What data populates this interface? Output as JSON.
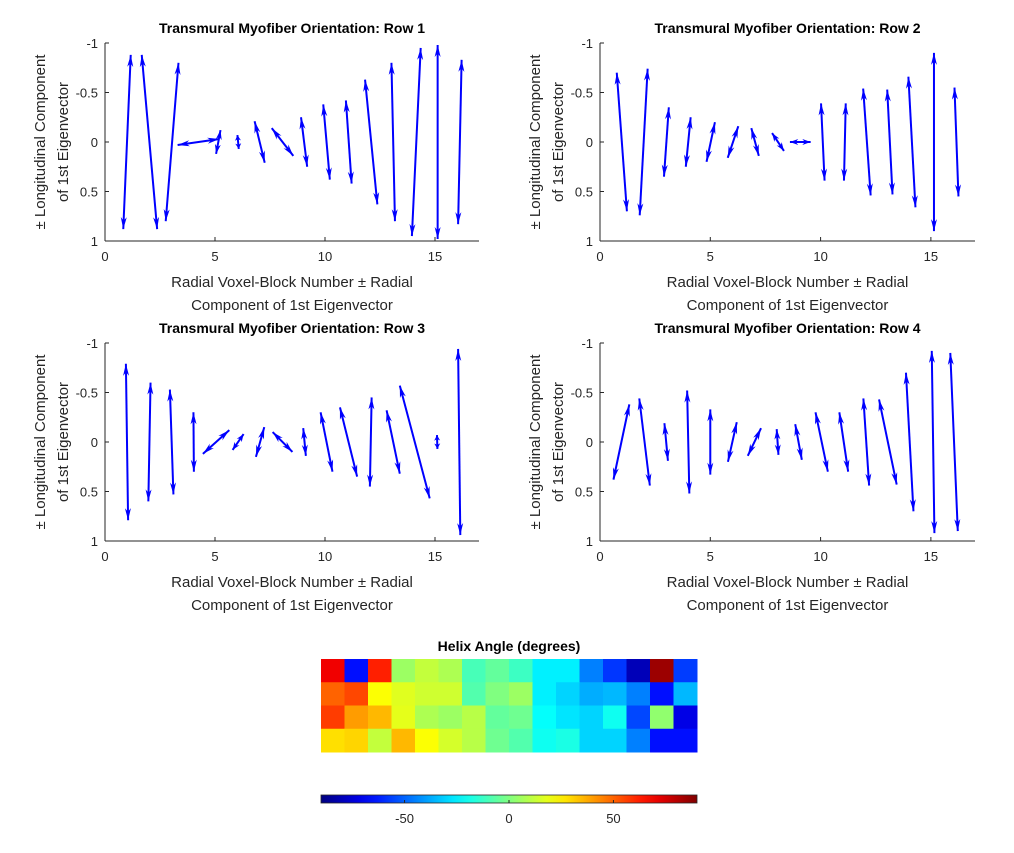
{
  "chart_data": [
    {
      "type": "quiver",
      "title": "Transmural Myofiber Orientation: Row 1",
      "xlabel": [
        "Radial Voxel-Block Number ± Radial",
        "Component of 1st Eigenvector"
      ],
      "ylabel": [
        "± Longitudinal Component",
        "of 1st Eigenvector"
      ],
      "xlim": [
        0,
        17
      ],
      "ylim": [
        -1,
        1
      ],
      "y_reversed": true,
      "xticks": [
        "0",
        "5",
        "10",
        "15"
      ],
      "yticks": [
        "-1",
        "-0.5",
        "0",
        "0.5",
        "1"
      ],
      "arrows_fields": [
        "x",
        "u",
        "v"
      ],
      "arrows": [
        [
          1,
          0.17,
          0.88
        ],
        [
          2.02,
          0.35,
          -0.88
        ],
        [
          3.05,
          0.29,
          0.8
        ],
        [
          4.25,
          0.95,
          0.03
        ],
        [
          5.15,
          0.1,
          0.12
        ],
        [
          6.05,
          0.03,
          -0.07
        ],
        [
          7.03,
          0.23,
          -0.21
        ],
        [
          8.07,
          0.49,
          -0.14
        ],
        [
          9.05,
          0.14,
          -0.25
        ],
        [
          10.07,
          0.15,
          -0.38
        ],
        [
          11.08,
          0.13,
          -0.42
        ],
        [
          12.1,
          0.28,
          -0.63
        ],
        [
          13.1,
          0.08,
          -0.8
        ],
        [
          14.15,
          0.2,
          0.95
        ],
        [
          15.12,
          0,
          0.98
        ],
        [
          16.13,
          0.08,
          0.83
        ]
      ]
    },
    {
      "type": "quiver",
      "title": "Transmural Myofiber Orientation: Row 2",
      "xlabel": [
        "Radial Voxel-Block Number ± Radial",
        "Component of 1st Eigenvector"
      ],
      "ylabel": [
        "± Longitudinal Component",
        "of 1st Eigenvector"
      ],
      "xlim": [
        0,
        17
      ],
      "ylim": [
        -1,
        1
      ],
      "y_reversed": true,
      "xticks": [
        "0",
        "5",
        "10",
        "15"
      ],
      "yticks": [
        "-1",
        "-0.5",
        "0",
        "0.5",
        "1"
      ],
      "arrows_fields": [
        "x",
        "u",
        "v"
      ],
      "arrows": [
        [
          0.99,
          0.23,
          -0.7
        ],
        [
          1.98,
          0.18,
          0.74
        ],
        [
          3.01,
          0.11,
          0.35
        ],
        [
          4.0,
          0.11,
          0.25
        ],
        [
          5.02,
          0.19,
          0.2
        ],
        [
          6.03,
          0.24,
          0.16
        ],
        [
          7.03,
          0.17,
          -0.14
        ],
        [
          8.07,
          0.27,
          -0.09
        ],
        [
          9.08,
          0.47,
          0
        ],
        [
          10.1,
          0.08,
          -0.39
        ],
        [
          11.1,
          0.04,
          0.39
        ],
        [
          12.1,
          0.17,
          -0.54
        ],
        [
          13.14,
          0.12,
          -0.53
        ],
        [
          14.14,
          0.16,
          -0.66
        ],
        [
          15.14,
          0,
          -0.9
        ],
        [
          16.16,
          0.09,
          -0.55
        ]
      ]
    },
    {
      "type": "quiver",
      "title": "Transmural Myofiber Orientation: Row 3",
      "xlabel": [
        "Radial Voxel-Block Number ± Radial",
        "Component of 1st Eigenvector"
      ],
      "ylabel": [
        "± Longitudinal Component",
        "of 1st Eigenvector"
      ],
      "xlim": [
        0,
        17
      ],
      "ylim": [
        -1,
        1
      ],
      "y_reversed": true,
      "xticks": [
        "0",
        "5",
        "10",
        "15"
      ],
      "yticks": [
        "-1",
        "-0.5",
        "0",
        "0.5",
        "1"
      ],
      "arrows_fields": [
        "x",
        "u",
        "v"
      ],
      "arrows": [
        [
          1.0,
          0.05,
          -0.79
        ],
        [
          2.02,
          0.05,
          0.6
        ],
        [
          3.03,
          0.08,
          -0.53
        ],
        [
          4.03,
          0.01,
          -0.3
        ],
        [
          5.05,
          0.6,
          0.12
        ],
        [
          6.05,
          0.25,
          0.08
        ],
        [
          7.05,
          0.19,
          0.15
        ],
        [
          8.07,
          0.45,
          -0.1
        ],
        [
          9.07,
          0.06,
          -0.14
        ],
        [
          10.07,
          0.27,
          -0.3
        ],
        [
          11.07,
          0.39,
          -0.35
        ],
        [
          12.08,
          0.04,
          0.45
        ],
        [
          13.1,
          0.3,
          -0.32
        ],
        [
          14.08,
          0.68,
          -0.57
        ],
        [
          15.1,
          0.01,
          -0.07
        ],
        [
          16.1,
          0.05,
          -0.94
        ]
      ]
    },
    {
      "type": "quiver",
      "title": "Transmural Myofiber Orientation: Row 4",
      "xlabel": [
        "Radial Voxel-Block Number ± Radial",
        "Component of 1st Eigenvector"
      ],
      "ylabel": [
        "± Longitudinal Component",
        "of 1st Eigenvector"
      ],
      "xlim": [
        0,
        17
      ],
      "ylim": [
        -1,
        1
      ],
      "y_reversed": true,
      "xticks": [
        "0",
        "5",
        "10",
        "15"
      ],
      "yticks": [
        "-1",
        "-0.5",
        "0",
        "0.5",
        "1"
      ],
      "arrows_fields": [
        "x",
        "u",
        "v"
      ],
      "arrows": [
        [
          0.97,
          0.36,
          0.38
        ],
        [
          2.02,
          0.24,
          -0.44
        ],
        [
          3.0,
          0.08,
          -0.19
        ],
        [
          4.0,
          0.05,
          -0.52
        ],
        [
          5.0,
          0,
          -0.33
        ],
        [
          6.0,
          0.2,
          0.2
        ],
        [
          7.0,
          0.3,
          0.14
        ],
        [
          8.05,
          0.04,
          -0.13
        ],
        [
          9.0,
          0.15,
          -0.18
        ],
        [
          10.05,
          0.28,
          -0.3
        ],
        [
          11.05,
          0.2,
          -0.3
        ],
        [
          12.07,
          0.13,
          -0.44
        ],
        [
          13.05,
          0.4,
          -0.43
        ],
        [
          14.04,
          0.17,
          -0.7
        ],
        [
          15.1,
          0.06,
          -0.92
        ],
        [
          16.05,
          0.17,
          -0.9
        ]
      ]
    },
    {
      "type": "heatmap",
      "title": "Helix Angle (degrees)",
      "colormap": "jet",
      "clim": [
        -90,
        90
      ],
      "colorbar_ticks": [
        {
          "value": -50,
          "label": "-50"
        },
        {
          "value": 0,
          "label": "0"
        },
        {
          "value": 50,
          "label": "50"
        }
      ],
      "values": [
        [
          70,
          -65,
          62,
          5,
          12,
          8,
          -10,
          -5,
          -12,
          -25,
          -25,
          -45,
          -58,
          -80,
          85,
          -57
        ],
        [
          50,
          55,
          22,
          17,
          14,
          14,
          -8,
          0,
          5,
          -25,
          -30,
          -37,
          -35,
          -45,
          -65,
          -35
        ],
        [
          57,
          40,
          35,
          18,
          8,
          5,
          10,
          -5,
          -3,
          -22,
          -27,
          -30,
          -20,
          -55,
          3,
          -72
        ],
        [
          28,
          30,
          12,
          35,
          22,
          15,
          10,
          -3,
          -8,
          -20,
          -18,
          -30,
          -30,
          -45,
          -65,
          -65
        ]
      ]
    }
  ],
  "colors": {
    "arrow": "#0000ff",
    "axis": "#262626"
  }
}
